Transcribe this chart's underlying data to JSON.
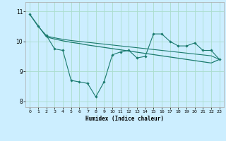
{
  "xlabel": "Humidex (Indice chaleur)",
  "background_color": "#cceeff",
  "grid_color": "#aaddcc",
  "line_color": "#1a7a6e",
  "xlim": [
    -0.5,
    23.5
  ],
  "ylim": [
    7.8,
    11.3
  ],
  "yticks": [
    8,
    9,
    10,
    11
  ],
  "xticks": [
    0,
    1,
    2,
    3,
    4,
    5,
    6,
    7,
    8,
    9,
    10,
    11,
    12,
    13,
    14,
    15,
    16,
    17,
    18,
    19,
    20,
    21,
    22,
    23
  ],
  "line1_x": [
    0,
    1,
    2,
    3,
    4,
    5,
    6,
    7,
    8,
    9,
    10,
    11,
    12,
    13,
    14,
    15,
    16,
    17,
    18,
    19,
    20,
    21,
    22,
    23
  ],
  "line1_y": [
    10.9,
    10.5,
    10.2,
    9.75,
    9.7,
    8.7,
    8.65,
    8.6,
    8.15,
    8.65,
    9.55,
    9.65,
    9.7,
    9.45,
    9.5,
    10.25,
    10.25,
    10.0,
    9.85,
    9.85,
    9.95,
    9.7,
    9.7,
    9.4
  ],
  "line2_x": [
    0,
    2,
    3,
    4,
    5,
    6,
    7,
    8,
    9,
    10,
    11,
    12,
    13,
    14,
    15,
    16,
    17,
    18,
    19,
    20,
    21,
    22,
    23
  ],
  "line2_y": [
    10.9,
    10.15,
    10.08,
    10.02,
    9.97,
    9.93,
    9.88,
    9.84,
    9.8,
    9.76,
    9.72,
    9.68,
    9.64,
    9.6,
    9.56,
    9.52,
    9.48,
    9.44,
    9.4,
    9.36,
    9.32,
    9.28,
    9.4
  ],
  "line3_x": [
    2,
    3,
    4,
    5,
    6,
    7,
    8,
    9,
    10,
    11,
    12,
    13,
    14,
    15,
    16,
    17,
    18,
    19,
    20,
    21,
    22,
    23
  ],
  "line3_y": [
    10.18,
    10.12,
    10.07,
    10.03,
    10.0,
    9.97,
    9.94,
    9.91,
    9.88,
    9.85,
    9.82,
    9.79,
    9.76,
    9.73,
    9.7,
    9.67,
    9.64,
    9.61,
    9.58,
    9.55,
    9.52,
    9.4
  ]
}
